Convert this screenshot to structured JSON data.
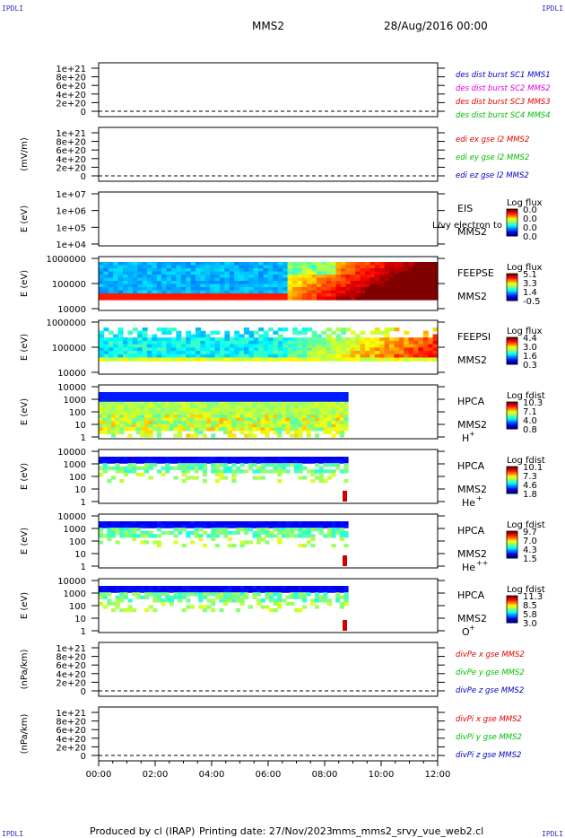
{
  "corners": {
    "tl": "IPDLI",
    "tr": "IPDLI",
    "bl": "IPDLI",
    "br": "IPDLI"
  },
  "header": {
    "spacecraft": "MMS2",
    "date": "28/Aug/2016 00:00"
  },
  "footer": {
    "produced": "Produced by cl (IRAP)",
    "printing": "Printing date: 27/Nov/2023",
    "file": "mms_mms2_srvy_vue_web2.cl"
  },
  "xaxis": {
    "ticks": [
      "00:00",
      "02:00",
      "04:00",
      "06:00",
      "08:00",
      "10:00",
      "12:00"
    ]
  },
  "colors": {
    "red": "#e00000",
    "blue": "#0000c0",
    "magenta": "#e000e0",
    "green": "#00c000"
  },
  "chart_data": [
    {
      "type": "line",
      "panel": "des dist burst",
      "ylabel": "",
      "yticks": [
        "1e+21",
        "8e+20",
        "6e+20",
        "4e+20",
        "2e+20",
        "0"
      ],
      "legend": [
        {
          "text": "des dist burst SC1 MMS1",
          "color": "#0000c0"
        },
        {
          "text": "des dist burst SC2 MMS2",
          "color": "#e000e0"
        },
        {
          "text": "des dist burst SC3 MMS3",
          "color": "#e00000"
        },
        {
          "text": "des dist burst SC4 MMS4",
          "color": "#00c000"
        }
      ],
      "baseline_dashed": 0
    },
    {
      "type": "line",
      "panel": "edi e gse",
      "ylabel": "(mV/m)",
      "yticks": [
        "1e+21",
        "8e+20",
        "6e+20",
        "4e+20",
        "2e+20",
        "0"
      ],
      "legend": [
        {
          "text": "edi ex gse l2 MMS2",
          "color": "#e00000"
        },
        {
          "text": "edi ey gse l2 MMS2",
          "color": "#00c000"
        },
        {
          "text": "edi ez gse l2 MMS2",
          "color": "#0000c0"
        }
      ],
      "baseline_dashed": 0
    },
    {
      "type": "heatmap",
      "panel": "EIS",
      "ylabel": "E (eV)",
      "yticks": [
        "1e+07",
        "1e+06",
        "1e+05",
        "1e+04"
      ],
      "side": [
        "EIS",
        "MMS2"
      ],
      "overlap_text": "L/vy electron to",
      "colorbar": {
        "title": "Log flux",
        "values": [
          "0.0",
          "0.0",
          "0.0",
          "0.0"
        ]
      }
    },
    {
      "type": "heatmap",
      "panel": "FEEPSE",
      "ylabel": "E (eV)",
      "yticks": [
        "1000000",
        "100000",
        "10000"
      ],
      "side": [
        "FEEPSE",
        "MMS2"
      ],
      "colorbar": {
        "title": "Log flux",
        "values": [
          "5.1",
          "3.3",
          "1.4",
          "-0.5"
        ]
      }
    },
    {
      "type": "heatmap",
      "panel": "FEEPSI",
      "ylabel": "E (eV)",
      "yticks": [
        "1000000",
        "100000",
        "10000"
      ],
      "side": [
        "FEEPSI",
        "MMS2"
      ],
      "colorbar": {
        "title": "Log flux",
        "values": [
          "4.4",
          "3.0",
          "1.6",
          "0.3"
        ]
      }
    },
    {
      "type": "heatmap",
      "panel": "HPCA H+",
      "ylabel": "E (eV)",
      "yticks": [
        "10000",
        "1000",
        "100",
        "10",
        "1"
      ],
      "side": [
        "HPCA",
        "MMS2"
      ],
      "species": "H",
      "charge": "+",
      "colorbar": {
        "title": "Log fdist",
        "values": [
          "10.3",
          "7.1",
          "4.0",
          "0.8"
        ]
      }
    },
    {
      "type": "heatmap",
      "panel": "HPCA He+",
      "ylabel": "E (eV)",
      "yticks": [
        "10000",
        "1000",
        "100",
        "10",
        "1"
      ],
      "side": [
        "HPCA",
        "MMS2"
      ],
      "species": "He",
      "charge": "+",
      "colorbar": {
        "title": "Log fdist",
        "values": [
          "10.1",
          "7.3",
          "4.6",
          "1.8"
        ]
      }
    },
    {
      "type": "heatmap",
      "panel": "HPCA He++",
      "ylabel": "E (eV)",
      "yticks": [
        "10000",
        "1000",
        "100",
        "10",
        "1"
      ],
      "side": [
        "HPCA",
        "MMS2"
      ],
      "species": "He",
      "charge": "++",
      "colorbar": {
        "title": "Log fdist",
        "values": [
          "9.7",
          "7.0",
          "4.3",
          "1.5"
        ]
      }
    },
    {
      "type": "heatmap",
      "panel": "HPCA O+",
      "ylabel": "E (eV)",
      "yticks": [
        "10000",
        "1000",
        "100",
        "10",
        "1"
      ],
      "side": [
        "HPCA",
        "MMS2"
      ],
      "species": "O",
      "charge": "+",
      "colorbar": {
        "title": "Log fdist",
        "values": [
          "11.3",
          "8.5",
          "5.8",
          "3.0"
        ]
      }
    },
    {
      "type": "line",
      "panel": "divPe",
      "ylabel": "(nPa/km)",
      "yticks": [
        "1e+21",
        "8e+20",
        "6e+20",
        "4e+20",
        "2e+20",
        "0"
      ],
      "legend": [
        {
          "text": "divPe x gse MMS2",
          "color": "#e00000"
        },
        {
          "text": "divPe y gse MMS2",
          "color": "#00c000"
        },
        {
          "text": "divPe z gse MMS2",
          "color": "#0000c0"
        }
      ],
      "baseline_dashed": 0
    },
    {
      "type": "line",
      "panel": "divPi",
      "ylabel": "(nPa/km)",
      "yticks": [
        "1e+21",
        "8e+20",
        "6e+20",
        "4e+20",
        "2e+20",
        "0"
      ],
      "legend": [
        {
          "text": "divPi x gse MMS2",
          "color": "#e00000"
        },
        {
          "text": "divPi y gse MMS2",
          "color": "#00c000"
        },
        {
          "text": "divPi z gse MMS2",
          "color": "#0000c0"
        }
      ],
      "baseline_dashed": 0
    }
  ]
}
